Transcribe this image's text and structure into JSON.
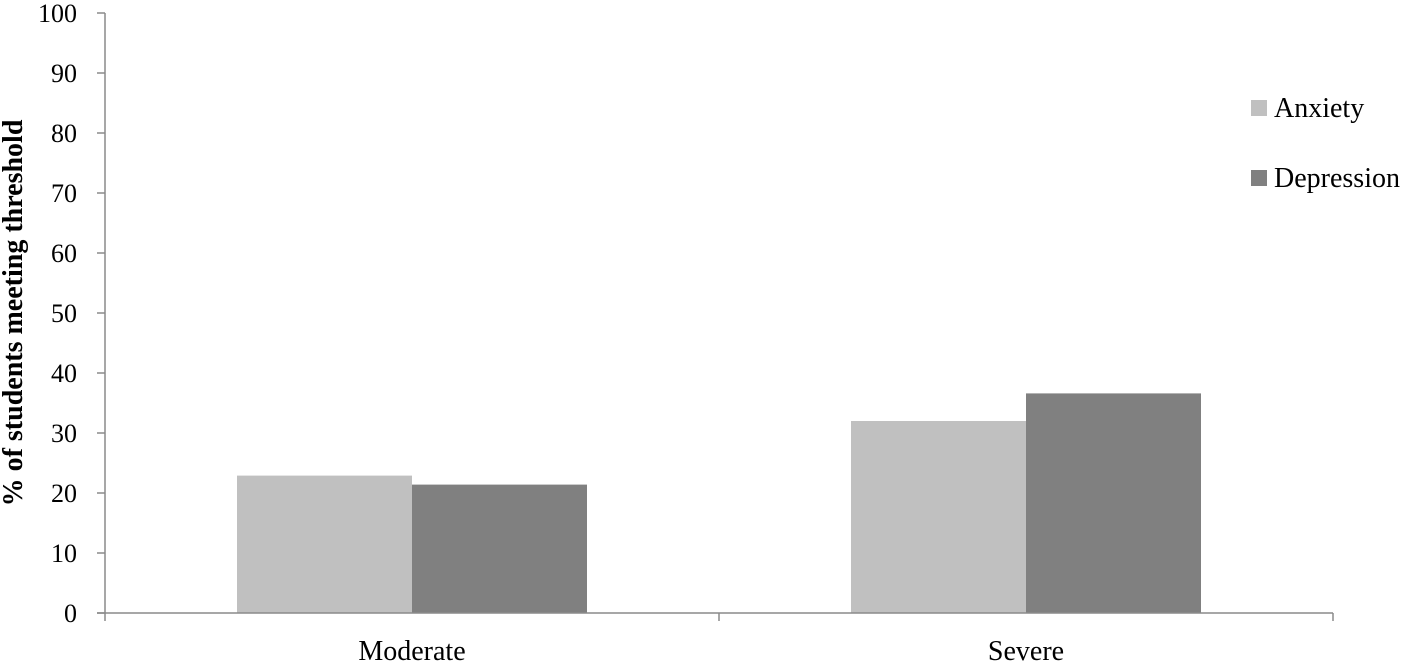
{
  "chart_data": {
    "type": "bar",
    "title": "",
    "xlabel": "",
    "ylabel": "% of students meeting threshold",
    "categories": [
      "Moderate",
      "Severe"
    ],
    "series": [
      {
        "name": "Anxiety",
        "values": [
          22.9,
          32.0
        ],
        "color": "#c0c0c0"
      },
      {
        "name": "Depression",
        "values": [
          21.4,
          36.6
        ],
        "color": "#808080"
      }
    ],
    "ylim": [
      0,
      100
    ],
    "yticks": [
      0,
      10,
      20,
      30,
      40,
      50,
      60,
      70,
      80,
      90,
      100
    ],
    "grid": false,
    "legend_position": "right"
  }
}
